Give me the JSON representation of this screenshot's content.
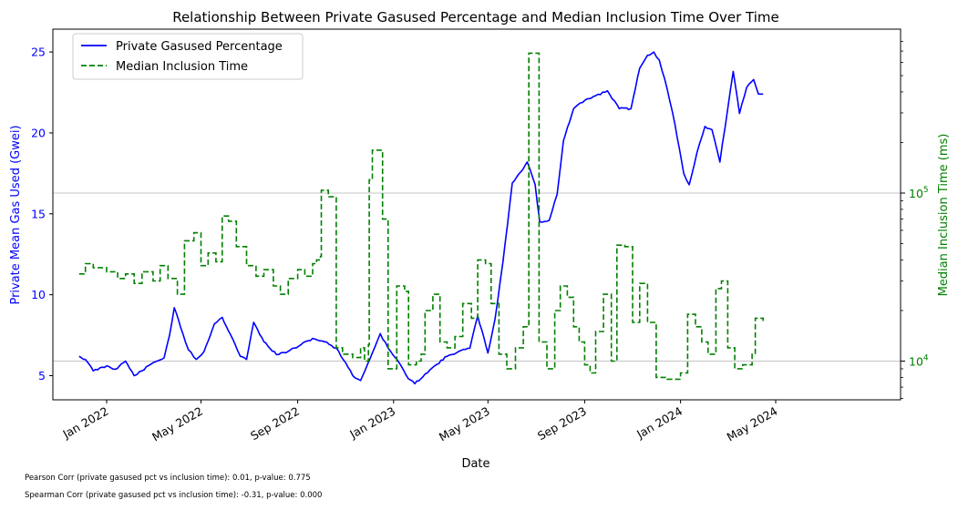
{
  "chart_data": {
    "type": "line",
    "title": "Relationship Between Private Gasused Percentage and Median Inclusion Time Over Time",
    "xlabel": "Date",
    "ylabel_left": "Private Mean Gas Used (Gwei)",
    "ylabel_right": "Median Inclusion Time (ms)",
    "x_ticks": [
      "Jan 2022",
      "May 2022",
      "Sep 2022",
      "Jan 2023",
      "May 2023",
      "Sep 2023",
      "Jan 2024",
      "May 2024"
    ],
    "y_left_ticks": [
      "5",
      "10",
      "15",
      "20",
      "25"
    ],
    "y_right_ticks": [
      {
        "base": "10",
        "exp": "4"
      },
      {
        "base": "10",
        "exp": "5"
      }
    ],
    "y_left_lim": [
      3.3,
      26.4
    ],
    "y_right_scale": "log",
    "grid": "horizontal lines at right-axis major ticks",
    "legend_position": "top-left",
    "colors": {
      "left_axis": "#0000ff",
      "right_axis": "#008000",
      "series1": "#0000ff",
      "series2": "#008000"
    },
    "series": [
      {
        "name": "Private Gasused Percentage",
        "axis": "left",
        "style": "solid",
        "points": [
          [
            "2021-11-27",
            6.2
          ],
          [
            "2021-12-05",
            6.0
          ],
          [
            "2021-12-15",
            5.3
          ],
          [
            "2022-01-01",
            5.6
          ],
          [
            "2022-01-12",
            5.4
          ],
          [
            "2022-01-25",
            5.9
          ],
          [
            "2022-02-05",
            5.0
          ],
          [
            "2022-02-15",
            5.3
          ],
          [
            "2022-03-01",
            5.8
          ],
          [
            "2022-03-15",
            6.1
          ],
          [
            "2022-03-22",
            7.5
          ],
          [
            "2022-03-28",
            9.2
          ],
          [
            "2022-04-05",
            8.0
          ],
          [
            "2022-04-15",
            6.6
          ],
          [
            "2022-04-25",
            6.0
          ],
          [
            "2022-05-05",
            6.5
          ],
          [
            "2022-05-18",
            8.2
          ],
          [
            "2022-05-28",
            8.6
          ],
          [
            "2022-06-10",
            7.3
          ],
          [
            "2022-06-20",
            6.2
          ],
          [
            "2022-06-28",
            6.0
          ],
          [
            "2022-07-07",
            8.3
          ],
          [
            "2022-07-20",
            7.1
          ],
          [
            "2022-08-05",
            6.3
          ],
          [
            "2022-08-20",
            6.5
          ],
          [
            "2022-09-05",
            6.9
          ],
          [
            "2022-09-20",
            7.3
          ],
          [
            "2022-10-05",
            7.1
          ],
          [
            "2022-10-20",
            6.7
          ],
          [
            "2022-11-01",
            5.8
          ],
          [
            "2022-11-10",
            5.0
          ],
          [
            "2022-11-20",
            4.7
          ],
          [
            "2022-12-05",
            6.4
          ],
          [
            "2022-12-15",
            7.6
          ],
          [
            "2022-12-25",
            6.7
          ],
          [
            "2023-01-08",
            5.8
          ],
          [
            "2023-01-20",
            4.8
          ],
          [
            "2023-01-28",
            4.5
          ],
          [
            "2023-02-10",
            5.1
          ],
          [
            "2023-02-25",
            5.7
          ],
          [
            "2023-03-10",
            6.2
          ],
          [
            "2023-03-25",
            6.5
          ],
          [
            "2023-04-08",
            6.7
          ],
          [
            "2023-04-18",
            8.7
          ],
          [
            "2023-05-01",
            6.4
          ],
          [
            "2023-05-10",
            8.5
          ],
          [
            "2023-05-20",
            12.0
          ],
          [
            "2023-06-01",
            16.9
          ],
          [
            "2023-06-12",
            17.6
          ],
          [
            "2023-06-20",
            18.2
          ],
          [
            "2023-06-30",
            16.8
          ],
          [
            "2023-07-06",
            14.5
          ],
          [
            "2023-07-18",
            14.6
          ],
          [
            "2023-07-28",
            16.2
          ],
          [
            "2023-08-05",
            19.5
          ],
          [
            "2023-08-18",
            21.5
          ],
          [
            "2023-09-01",
            22.0
          ],
          [
            "2023-09-15",
            22.3
          ],
          [
            "2023-09-30",
            22.6
          ],
          [
            "2023-10-15",
            21.5
          ],
          [
            "2023-10-30",
            21.5
          ],
          [
            "2023-11-10",
            24.0
          ],
          [
            "2023-11-20",
            24.8
          ],
          [
            "2023-11-28",
            25.0
          ],
          [
            "2023-12-05",
            24.5
          ],
          [
            "2023-12-15",
            22.7
          ],
          [
            "2023-12-25",
            20.5
          ],
          [
            "2024-01-05",
            17.5
          ],
          [
            "2024-01-12",
            16.8
          ],
          [
            "2024-01-22",
            18.8
          ],
          [
            "2024-02-01",
            20.4
          ],
          [
            "2024-02-10",
            20.2
          ],
          [
            "2024-02-20",
            18.2
          ],
          [
            "2024-03-01",
            21.5
          ],
          [
            "2024-03-08",
            23.8
          ],
          [
            "2024-03-16",
            21.2
          ],
          [
            "2024-03-25",
            22.8
          ],
          [
            "2024-04-03",
            23.3
          ],
          [
            "2024-04-09",
            22.4
          ],
          [
            "2024-04-15",
            22.4
          ]
        ]
      },
      {
        "name": "Median Inclusion Time",
        "axis": "right",
        "style": "dashed",
        "points": [
          [
            "2021-11-27",
            33000
          ],
          [
            "2021-12-05",
            38000
          ],
          [
            "2021-12-15",
            36000
          ],
          [
            "2022-01-01",
            34000
          ],
          [
            "2022-01-15",
            31000
          ],
          [
            "2022-01-25",
            33000
          ],
          [
            "2022-02-05",
            29000
          ],
          [
            "2022-02-15",
            34000
          ],
          [
            "2022-03-01",
            30000
          ],
          [
            "2022-03-10",
            37000
          ],
          [
            "2022-03-20",
            31000
          ],
          [
            "2022-04-01",
            25000
          ],
          [
            "2022-04-10",
            52000
          ],
          [
            "2022-04-22",
            58000
          ],
          [
            "2022-05-01",
            37000
          ],
          [
            "2022-05-10",
            44000
          ],
          [
            "2022-05-20",
            39000
          ],
          [
            "2022-05-28",
            73000
          ],
          [
            "2022-06-05",
            68000
          ],
          [
            "2022-06-15",
            48000
          ],
          [
            "2022-06-28",
            37000
          ],
          [
            "2022-07-10",
            32000
          ],
          [
            "2022-07-20",
            35000
          ],
          [
            "2022-08-01",
            28000
          ],
          [
            "2022-08-10",
            25000
          ],
          [
            "2022-08-20",
            31000
          ],
          [
            "2022-09-01",
            35000
          ],
          [
            "2022-09-10",
            32000
          ],
          [
            "2022-09-20",
            38000
          ],
          [
            "2022-09-25",
            40000
          ],
          [
            "2022-09-30",
            42000
          ],
          [
            "2022-10-01",
            104000
          ],
          [
            "2022-10-10",
            95000
          ],
          [
            "2022-10-20",
            12000
          ],
          [
            "2022-10-28",
            11000
          ],
          [
            "2022-11-10",
            10500
          ],
          [
            "2022-11-20",
            12000
          ],
          [
            "2022-11-25",
            10000
          ],
          [
            "2022-11-30",
            12500
          ],
          [
            "2022-12-01",
            120000
          ],
          [
            "2022-12-05",
            180000
          ],
          [
            "2022-12-15",
            180000
          ],
          [
            "2022-12-18",
            70000
          ],
          [
            "2022-12-25",
            9000
          ],
          [
            "2023-01-05",
            28000
          ],
          [
            "2023-01-15",
            26000
          ],
          [
            "2023-01-20",
            9500
          ],
          [
            "2023-01-30",
            10000
          ],
          [
            "2023-02-05",
            11000
          ],
          [
            "2023-02-10",
            20000
          ],
          [
            "2023-02-20",
            25000
          ],
          [
            "2023-03-01",
            13000
          ],
          [
            "2023-03-10",
            12000
          ],
          [
            "2023-03-20",
            14000
          ],
          [
            "2023-03-30",
            22000
          ],
          [
            "2023-04-10",
            18000
          ],
          [
            "2023-04-18",
            40000
          ],
          [
            "2023-04-28",
            38000
          ],
          [
            "2023-05-05",
            22000
          ],
          [
            "2023-05-15",
            11000
          ],
          [
            "2023-05-25",
            9000
          ],
          [
            "2023-06-05",
            12000
          ],
          [
            "2023-06-15",
            16000
          ],
          [
            "2023-06-22",
            680000
          ],
          [
            "2023-07-01",
            680000
          ],
          [
            "2023-07-05",
            13000
          ],
          [
            "2023-07-15",
            9000
          ],
          [
            "2023-07-25",
            20000
          ],
          [
            "2023-08-01",
            28000
          ],
          [
            "2023-08-10",
            24000
          ],
          [
            "2023-08-18",
            16000
          ],
          [
            "2023-08-25",
            13000
          ],
          [
            "2023-09-01",
            9500
          ],
          [
            "2023-09-08",
            8500
          ],
          [
            "2023-09-15",
            15000
          ],
          [
            "2023-09-25",
            25000
          ],
          [
            "2023-10-05",
            10000
          ],
          [
            "2023-10-12",
            49000
          ],
          [
            "2023-10-22",
            48000
          ],
          [
            "2023-11-01",
            17000
          ],
          [
            "2023-11-10",
            29000
          ],
          [
            "2023-11-20",
            17000
          ],
          [
            "2023-12-01",
            8000
          ],
          [
            "2023-12-15",
            7800
          ],
          [
            "2024-01-01",
            8500
          ],
          [
            "2024-01-10",
            19000
          ],
          [
            "2024-01-20",
            16000
          ],
          [
            "2024-01-28",
            13000
          ],
          [
            "2024-02-05",
            11000
          ],
          [
            "2024-02-15",
            27000
          ],
          [
            "2024-02-22",
            30000
          ],
          [
            "2024-03-01",
            12000
          ],
          [
            "2024-03-10",
            9000
          ],
          [
            "2024-03-20",
            9500
          ],
          [
            "2024-04-01",
            11000
          ],
          [
            "2024-04-05",
            18000
          ],
          [
            "2024-04-15",
            17000
          ]
        ]
      }
    ]
  },
  "footnotes": [
    "Pearson Corr (private gasused pct vs inclusion time): 0.01, p-value: 0.775",
    "Spearman Corr (private gasused pct vs inclusion time): -0.31, p-value: 0.000"
  ]
}
